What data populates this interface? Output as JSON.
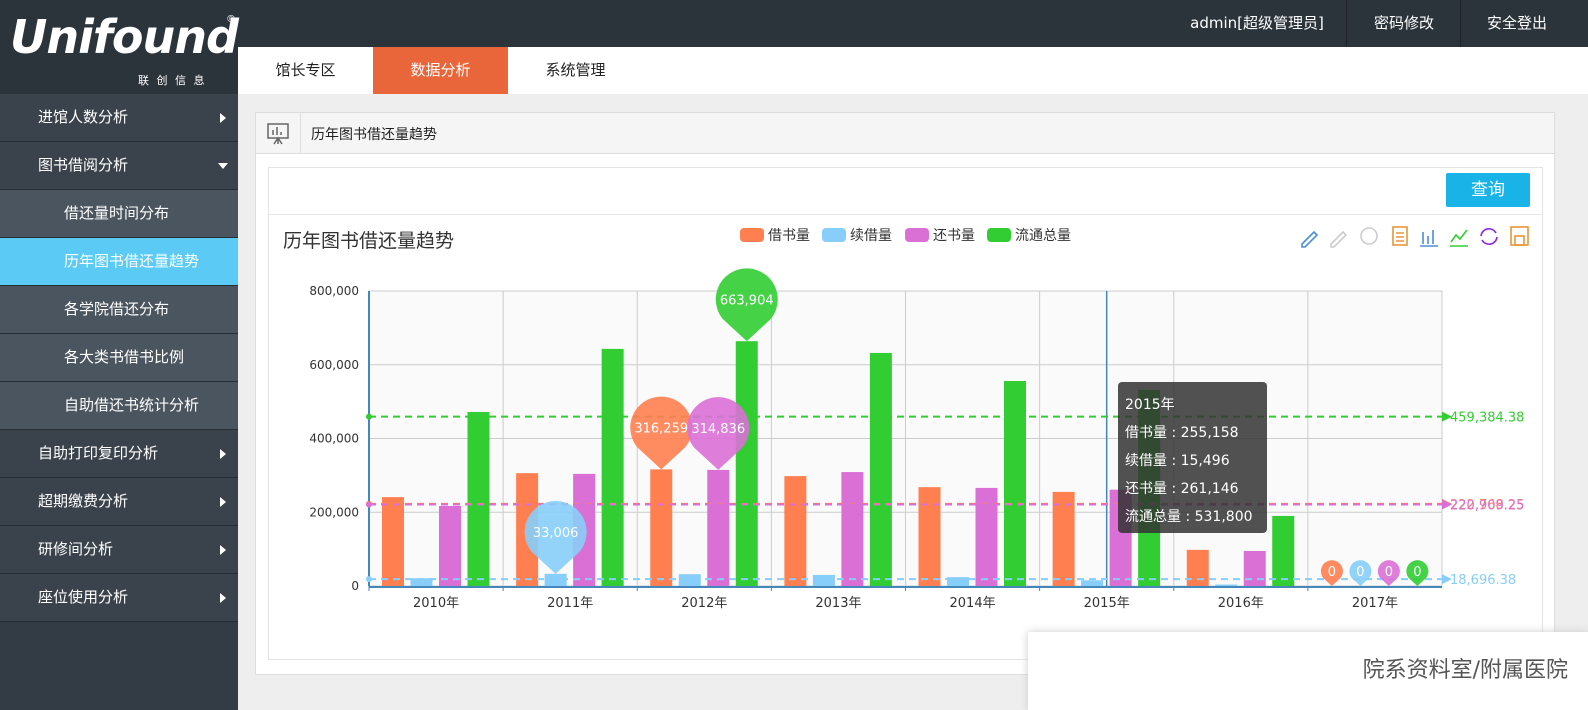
{
  "header": {
    "logo": "Unifound",
    "logo_mark": "®",
    "logo_sub": "联 创 信 息",
    "user": "admin[超级管理员]",
    "links": [
      "密码修改",
      "安全登出"
    ]
  },
  "tabs": [
    "馆长专区",
    "数据分析",
    "系统管理"
  ],
  "active_tab": 1,
  "menu": [
    {
      "label": "进馆人数分析"
    },
    {
      "label": "图书借阅分析",
      "children": [
        "借还量时间分布",
        "历年图书借还量趋势",
        "各学院借还分布",
        "各大类书借书比例",
        "自助借还书统计分析"
      ],
      "active_child": 1
    },
    {
      "label": "自助打印复印分析"
    },
    {
      "label": "超期缴费分析"
    },
    {
      "label": "研修间分析"
    },
    {
      "label": "座位使用分析"
    }
  ],
  "panel_title": "历年图书借还量趋势",
  "query_button": "查询",
  "overlay_text": "院系资料室/附属医院",
  "chart_data": {
    "type": "bar",
    "title": "历年图书借还量趋势",
    "categories": [
      "2010年",
      "2011年",
      "2012年",
      "2013年",
      "2014年",
      "2015年",
      "2016年",
      "2017年"
    ],
    "series": [
      {
        "name": "借书量",
        "color": "#ff7f50",
        "values": [
          241000,
          306000,
          316259,
          298000,
          268000,
          255158,
          98000,
          0
        ],
        "markpoints": [
          {
            "index": 2,
            "label": "316,259"
          },
          {
            "index": 7,
            "label": 0
          }
        ],
        "average": {
          "value": 222768.25,
          "label": "222,768.25"
        }
      },
      {
        "name": "续借量",
        "color": "#87cefa",
        "values": [
          21000,
          33006,
          32000,
          30000,
          24000,
          15496,
          4000,
          0
        ],
        "markpoints": [
          {
            "index": 1,
            "label": "33,006"
          },
          {
            "index": 7,
            "label": 0
          }
        ],
        "average": {
          "value": 18696.38,
          "label": "18,696.38"
        }
      },
      {
        "name": "还书量",
        "color": "#da70d6",
        "values": [
          217000,
          304000,
          314836,
          309000,
          266000,
          261146,
          95000,
          0
        ],
        "markpoints": [
          {
            "index": 2,
            "label": "314,836"
          },
          {
            "index": 7,
            "label": 0
          }
        ],
        "average": {
          "value": 220909.25,
          "label": "220,909.25"
        }
      },
      {
        "name": "流通总量",
        "color": "#32cd32",
        "values": [
          472000,
          643000,
          663904,
          632000,
          556000,
          531800,
          190000,
          0
        ],
        "markpoints": [
          {
            "index": 2,
            "label": "663,904"
          },
          {
            "index": 7,
            "label": 0
          }
        ],
        "average": {
          "value": 459384.38,
          "label": "459,384.38"
        }
      }
    ],
    "ylim": [
      0,
      800000
    ],
    "yticks": [
      0,
      {
        "value": 200000,
        "label": "200,000"
      },
      {
        "value": 400000,
        "label": "400,000"
      },
      {
        "value": 600000,
        "label": "600,000"
      },
      {
        "value": 800000,
        "label": "800,000"
      }
    ],
    "grid": true,
    "legend": "top",
    "tooltip": {
      "index": 5,
      "title": "2015年",
      "lines": [
        "借书量 : 255,158",
        "续借量 : 15,496",
        "还书量 : 261,146",
        "流通总量 : 531,800"
      ]
    }
  }
}
